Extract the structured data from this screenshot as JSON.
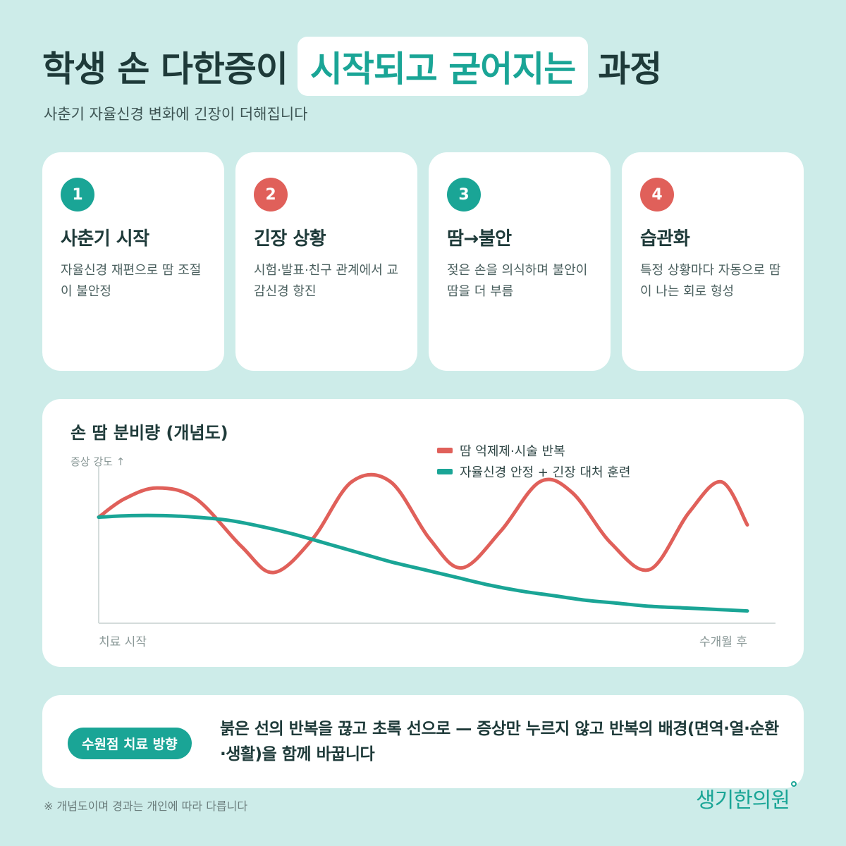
{
  "header": {
    "title_part1": "학생 손 다한증이",
    "title_highlight": "시작되고 굳어지는",
    "title_part2": "과정",
    "subtitle": "사춘기 자율신경 변화에 긴장이 더해집니다"
  },
  "steps": [
    {
      "number": "1",
      "title": "사춘기 시작",
      "desc": "자율신경 재편으로 땀 조절이 불안정",
      "color": "#1aa596"
    },
    {
      "number": "2",
      "title": "긴장 상황",
      "desc": "시험·발표·친구 관계에서 교감신경 항진",
      "color": "#e0605a"
    },
    {
      "number": "3",
      "title": "땀→불안",
      "desc": "젖은 손을 의식하며 불안이 땀을 더 부름",
      "color": "#1aa596"
    },
    {
      "number": "4",
      "title": "습관화",
      "desc": "특정 상황마다 자동으로 땀이 나는 회로 형성",
      "color": "#e0605a"
    }
  ],
  "chart_data": {
    "type": "line",
    "title": "손 땀 분비량 (개념도)",
    "ylabel": "증상 강도 ↑",
    "x_start_label": "치료 시작",
    "x_end_label": "수개월 후",
    "legend_placement": "top-right",
    "xlim": [
      0,
      1
    ],
    "ylim": [
      0,
      1
    ],
    "series": [
      {
        "name": "땀 억제제·시술 반복",
        "color": "#e0605a",
        "x": [
          0,
          0.04,
          0.09,
          0.15,
          0.22,
          0.27,
          0.33,
          0.39,
          0.45,
          0.51,
          0.56,
          0.62,
          0.68,
          0.73,
          0.79,
          0.85,
          0.91,
          0.96,
          1
        ],
        "values": [
          0.69,
          0.81,
          0.88,
          0.81,
          0.5,
          0.33,
          0.55,
          0.92,
          0.92,
          0.55,
          0.36,
          0.6,
          0.92,
          0.85,
          0.52,
          0.35,
          0.72,
          0.92,
          0.64
        ]
      },
      {
        "name": "자율신경 안정 + 긴장 대처 훈련",
        "color": "#1aa596",
        "x": [
          0,
          0.05,
          0.1,
          0.15,
          0.2,
          0.25,
          0.3,
          0.35,
          0.4,
          0.45,
          0.5,
          0.55,
          0.6,
          0.65,
          0.7,
          0.75,
          0.8,
          0.85,
          0.9,
          0.95,
          1
        ],
        "values": [
          0.69,
          0.7,
          0.7,
          0.69,
          0.67,
          0.63,
          0.58,
          0.52,
          0.46,
          0.4,
          0.35,
          0.3,
          0.25,
          0.21,
          0.18,
          0.15,
          0.13,
          0.11,
          0.1,
          0.09,
          0.08
        ]
      }
    ]
  },
  "direction": {
    "label": "수원점 치료 방향",
    "text": "붉은 선의 반복을 끊고 초록 선으로 — 증상만 누르지 않고 반복의 배경(면역·열·순환·생활)을 함께 바꿉니다"
  },
  "footnote": "※ 개념도이며 경과는 개인에 따라 다릅니다",
  "logo": "생기한의원"
}
